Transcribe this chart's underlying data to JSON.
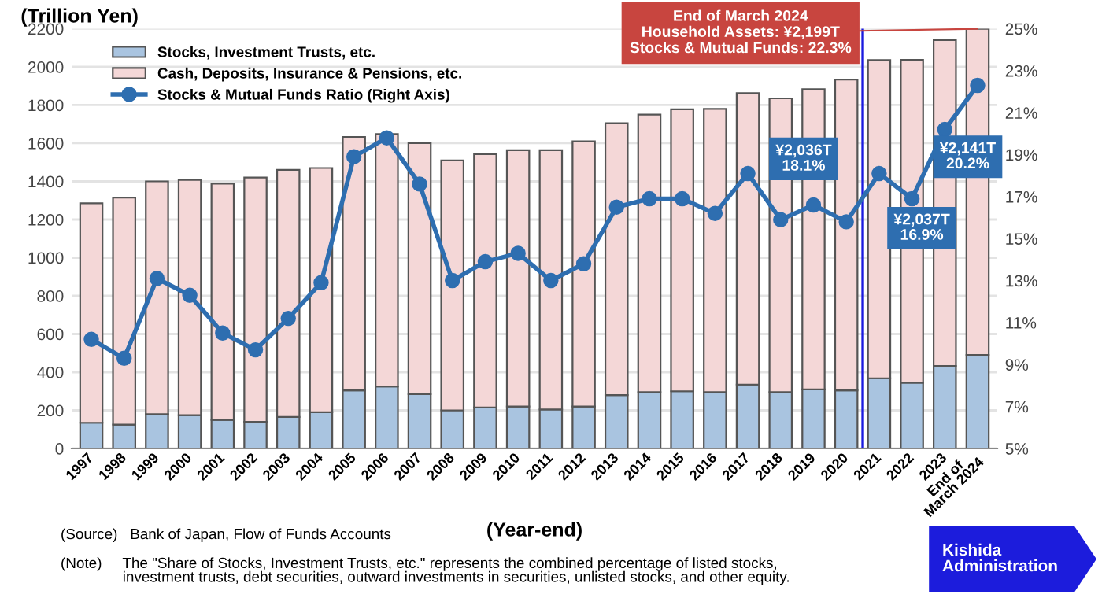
{
  "chart_data": {
    "type": "bar",
    "stacked": true,
    "x": [
      1997,
      1998,
      1999,
      2000,
      2001,
      2002,
      2003,
      2004,
      2005,
      2006,
      2007,
      2008,
      2009,
      2010,
      2011,
      2012,
      2013,
      2014,
      2015,
      2016,
      2017,
      2018,
      2019,
      2020,
      2021,
      2022,
      2023,
      2024
    ],
    "xlim": [
      1996.4,
      2024.6
    ],
    "xticks": [
      1997,
      1998,
      1999,
      2000,
      2001,
      2002,
      2003,
      2004,
      2005,
      2006,
      2007,
      2008,
      2009,
      2010,
      2011,
      2012,
      2013,
      2014,
      2015,
      2016,
      2017,
      2018,
      2019,
      2020,
      2021,
      2022,
      2023,
      {
        "value": 2024,
        "label": "End of\nMarch 2024"
      }
    ],
    "ylabel": "(Trillion Yen)",
    "xlabel": "(Year-end)",
    "ylim": [
      0,
      2200
    ],
    "yticks": [
      0,
      200,
      400,
      600,
      800,
      1000,
      1200,
      1400,
      1600,
      1800,
      2000,
      2200
    ],
    "y2lim": [
      5,
      25
    ],
    "y2ticks": [
      {
        "value": 5,
        "label": "5%"
      },
      {
        "value": 7,
        "label": "7%"
      },
      {
        "value": 9,
        "label": "9%"
      },
      {
        "value": 11,
        "label": "11%"
      },
      {
        "value": 13,
        "label": "13%"
      },
      {
        "value": 15,
        "label": "15%"
      },
      {
        "value": 17,
        "label": "17%"
      },
      {
        "value": 19,
        "label": "19%"
      },
      {
        "value": 21,
        "label": "21%"
      },
      {
        "value": 23,
        "label": "23%"
      },
      {
        "value": 25,
        "label": "25%"
      }
    ],
    "series": [
      {
        "name": "Stocks, Investment Trusts, etc.",
        "color": "#a9c4e0",
        "values": [
          135,
          125,
          180,
          175,
          150,
          140,
          165,
          190,
          305,
          325,
          285,
          200,
          215,
          220,
          205,
          220,
          280,
          295,
          300,
          295,
          335,
          295,
          310,
          305,
          368,
          345,
          432,
          490
        ]
      },
      {
        "name": "Cash, Deposits, Insurance & Pensions, etc.",
        "color": "#f4d7d7",
        "values": [
          1150,
          1190,
          1220,
          1233,
          1238,
          1280,
          1295,
          1280,
          1327,
          1323,
          1315,
          1310,
          1328,
          1343,
          1358,
          1390,
          1425,
          1455,
          1478,
          1485,
          1527,
          1540,
          1573,
          1628,
          1668,
          1692,
          1709,
          1709
        ]
      },
      {
        "name": "Stocks & Mutual Funds Ratio (Right Axis)",
        "type": "line",
        "axis": "y2",
        "color": "#2e6eb0",
        "marker": "circle",
        "values": [
          10.2,
          9.3,
          13.1,
          12.3,
          10.5,
          9.7,
          11.2,
          12.9,
          18.9,
          19.8,
          17.6,
          13.0,
          13.9,
          14.3,
          13.0,
          13.8,
          16.5,
          16.9,
          16.9,
          16.2,
          18.1,
          15.9,
          16.6,
          15.8,
          18.1,
          16.9,
          20.2,
          22.3
        ]
      }
    ],
    "ref_lines": [
      {
        "axis": "x",
        "value": 2020.5,
        "color": "#1a1adf"
      }
    ],
    "grid": "y",
    "legend": "top left",
    "annotations": [
      {
        "text": "End of March 2024\nHousehold Assets: ¥2,199T\nStocks & Mutual Funds: 22.3%",
        "x": 2024,
        "y": 2199
      },
      "¥2,036T\n18.1%",
      "¥2,037T\n16.9%",
      "¥2,141T\n20.2%",
      "(Source)   Bank of Japan, Flow of Funds Accounts",
      "(Note)     The \"Share of Stocks, Investment Trusts, etc.\" represents the combined percentage of listed stocks,\n               investment trusts, debt securities, outward investments in securities, unlisted stocks, and other equity.",
      "Kishida\nAdministration"
    ]
  }
}
